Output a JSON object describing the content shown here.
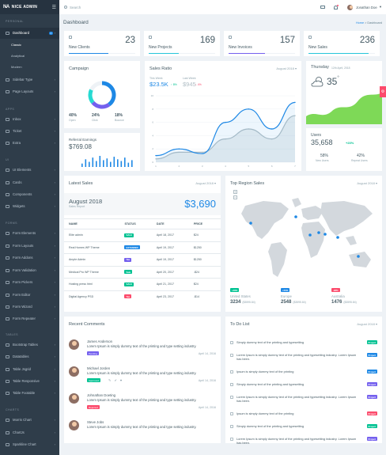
{
  "brand": {
    "name": "NICE ADMIN",
    "mark": "NA"
  },
  "sidebar": {
    "sections": [
      {
        "label": "PERSONAL",
        "top": 22
      },
      {
        "label": "APPS",
        "top": 133
      },
      {
        "label": "UI",
        "top": 197
      },
      {
        "label": "FORMS",
        "top": 277
      },
      {
        "label": "TABLES",
        "top": 418
      },
      {
        "label": "CHARTS",
        "top": 513
      }
    ],
    "items": [
      {
        "label": "Dashboard",
        "top": 39,
        "active": true,
        "badge": "4"
      },
      {
        "label": "Sidebar Type",
        "top": 98
      },
      {
        "label": "Page Layouts",
        "top": 113
      },
      {
        "label": "Inbox",
        "top": 148
      },
      {
        "label": "Ticket",
        "top": 163
      },
      {
        "label": "Extra",
        "top": 178
      },
      {
        "label": "UI Elements",
        "top": 212
      },
      {
        "label": "Cards",
        "top": 228
      },
      {
        "label": "Components",
        "top": 243
      },
      {
        "label": "Widgets",
        "top": 258
      },
      {
        "label": "Form Elements",
        "top": 292
      },
      {
        "label": "Form Layouts",
        "top": 308
      },
      {
        "label": "Form Addons",
        "top": 323
      },
      {
        "label": "Form Validation",
        "top": 339
      },
      {
        "label": "Form Pickers",
        "top": 354
      },
      {
        "label": "Form Editor",
        "top": 370
      },
      {
        "label": "Form Wizard",
        "top": 385
      },
      {
        "label": "Form Repeater",
        "top": 400
      },
      {
        "label": "Bootstrap Tables",
        "top": 433
      },
      {
        "label": "Datatables",
        "top": 448
      },
      {
        "label": "Table Jsgrid",
        "top": 464
      },
      {
        "label": "Table Responsive",
        "top": 479
      },
      {
        "label": "Table Footable",
        "top": 494
      },
      {
        "label": "Morris Chart",
        "top": 528
      },
      {
        "label": "ChartJs",
        "top": 544
      },
      {
        "label": "Sparkline Chart",
        "top": 559
      }
    ],
    "subitems": [
      {
        "label": "Classic",
        "top": 53
      },
      {
        "label": "Analytical",
        "top": 67
      },
      {
        "label": "Modern",
        "top": 81
      }
    ]
  },
  "topbar": {
    "search_placeholder": "Search",
    "user_name": "Jonathan Doe"
  },
  "page": {
    "title": "Dashboard",
    "breadcrumb_home": "Home",
    "breadcrumb_current": "Dashboard"
  },
  "stats": [
    {
      "label": "New Clients",
      "value": "23",
      "color": "#1e88e5",
      "fill": 0.6
    },
    {
      "label": "New Projects",
      "value": "169",
      "color": "#26c6da",
      "fill": 0.45
    },
    {
      "label": "New Invoices",
      "value": "157",
      "color": "#7460ee",
      "fill": 0.55
    },
    {
      "label": "New Sales",
      "value": "236",
      "color": "#26c6da",
      "fill": 0.9
    }
  ],
  "campaign": {
    "title": "Campaign",
    "items": [
      {
        "value": "40%",
        "label": "Open"
      },
      {
        "value": "24%",
        "label": "Click"
      },
      {
        "value": "18%",
        "label": "Bounce"
      }
    ],
    "donut": [
      {
        "value": 40,
        "color": "#1e88e5"
      },
      {
        "value": 24,
        "color": "#7460ee"
      },
      {
        "value": 18,
        "color": "#26dad2"
      },
      {
        "value": 18,
        "color": "#eef2f6"
      }
    ]
  },
  "referral": {
    "title": "Referral Earnings",
    "value": "$769.08",
    "bars": [
      4,
      9,
      6,
      11,
      7,
      13,
      8,
      10,
      6,
      12,
      9,
      7,
      11,
      5,
      8
    ]
  },
  "sales_ratio": {
    "title": "Sales Ratio",
    "period": "August 2018",
    "this_week_label": "This Week",
    "this_week_value": "$23.5K",
    "this_week_change": "↑ 8%",
    "last_week_label": "Last Week",
    "last_week_value": "$945",
    "last_week_change": "↓ 4%"
  },
  "chart_data": {
    "type": "area",
    "x": [
      1,
      2,
      3,
      4,
      5,
      6,
      7
    ],
    "series": [
      {
        "values": [
          1,
          2,
          1.3,
          6,
          8,
          5,
          9
        ],
        "color": "#1e88e5"
      },
      {
        "values": [
          0.5,
          1.5,
          1.5,
          3.5,
          5,
          3.5,
          7
        ],
        "color": "#b0bec5"
      }
    ],
    "ylim": [
      0,
      10
    ],
    "xticks": [
      "1",
      "2",
      "3",
      "4",
      "5",
      "6",
      "7"
    ],
    "yticks": [
      "0",
      "2",
      "4",
      "6",
      "8",
      "10"
    ]
  },
  "weather": {
    "day": "Thursday",
    "date": "12th April, 2018",
    "temp": "35",
    "deg": "°"
  },
  "users": {
    "title": "Users",
    "value": "35,658",
    "change": "+23%",
    "new_value": "58%",
    "new_label": "New Users",
    "repeat_value": "42%",
    "repeat_label": "Repeat Users"
  },
  "latest_sales": {
    "title": "Latest Sales",
    "period": "August 2018",
    "month": "August 2018",
    "report": "Sales Report",
    "amount": "$3,690",
    "columns": [
      "NAME",
      "STATUS",
      "DATE",
      "PRICE"
    ],
    "rows": [
      {
        "name": "Elite admin",
        "status": "SALE",
        "scolor": "#00c292",
        "date": "April 18, 2017",
        "price": "$24"
      },
      {
        "name": "Real Homes WP Theme",
        "status": "EXTENDED",
        "scolor": "#1e88e5",
        "date": "April 19, 2017",
        "price": "$1250"
      },
      {
        "name": "Ample Admin",
        "status": "Tax",
        "scolor": "#7460ee",
        "date": "April 19, 2017",
        "price": "$1250"
      },
      {
        "name": "Medical Pro WP Theme",
        "status": "Sale",
        "scolor": "#00c292",
        "date": "April 20, 2017",
        "price": "-$24"
      },
      {
        "name": "Hosting press html",
        "status": "SALE",
        "scolor": "#00c292",
        "date": "April 21, 2017",
        "price": "$24"
      },
      {
        "name": "Digital Agency PSD",
        "status": "Tax",
        "scolor": "#fc4b6c",
        "date": "April 23, 2017",
        "price": "-$14"
      }
    ]
  },
  "region": {
    "title": "Top Region Sales",
    "period": "August 2018",
    "regions": [
      {
        "badge": "+28%",
        "bcolor": "#00c292",
        "name": "United States",
        "value": "3234",
        "sub": "($3595.84)"
      },
      {
        "badge": "+50%",
        "bcolor": "#1e88e5",
        "name": "Europe",
        "value": "2548",
        "sub": "($3595.84)"
      },
      {
        "badge": "-28%",
        "bcolor": "#fc4b6c",
        "name": "Australia",
        "value": "1476",
        "sub": "($3595.84)"
      }
    ]
  },
  "comments": {
    "title": "Recent Comments",
    "items": [
      {
        "name": "James Anderson",
        "text": "Lorem Ipsum is simply dummy text of the printing and type setting industry.",
        "status": "Pending",
        "scolor": "#7460ee",
        "date": "April 14, 2016"
      },
      {
        "name": "Michael Jorden",
        "text": "Lorem Ipsum is simply dummy text of the printing and type setting industry.",
        "status": "Approved",
        "scolor": "#00c292",
        "date": "April 14, 2016"
      },
      {
        "name": "Johnathan Doeting",
        "text": "Lorem Ipsum is simply dummy text of the printing and type setting industry.",
        "status": "Rejected",
        "scolor": "#fc4b6c",
        "date": "April 14, 2016"
      },
      {
        "name": "Steve Jobs",
        "text": "Lorem Ipsum is simply dummy text of the printing and type setting industry.",
        "status": "",
        "scolor": "",
        "date": ""
      }
    ]
  },
  "todo": {
    "title": "To Do List",
    "period": "August 2018",
    "items": [
      {
        "text": "Simply dummy text of the printing and typesetting",
        "tag": "Project",
        "tcolor": "#00c292",
        "top": 21
      },
      {
        "text": "Lorem Ipsum is simply dummy text of the printing and typesetting industry. Lorem Ipsum has been.",
        "tag": "Project",
        "tcolor": "#1e88e5",
        "top": 37
      },
      {
        "text": "Ipsum is simply dummy text of the printing",
        "tag": "Project",
        "tcolor": "#1e88e5",
        "top": 58
      },
      {
        "text": "Simply dummy text of the printing and typesetting",
        "tag": "Project",
        "tcolor": "#7460ee",
        "top": 74
      },
      {
        "text": "Lorem Ipsum is simply dummy text of the printing and typesetting industry. Lorem Ipsum has been.",
        "tag": "Project",
        "tcolor": "#7460ee",
        "top": 90
      },
      {
        "text": "Ipsum is simply dummy text of the printing",
        "tag": "Project",
        "tcolor": "#fc4b6c",
        "top": 111
      },
      {
        "text": "Simply dummy text of the printing and typesetting",
        "tag": "Project",
        "tcolor": "#00c292",
        "top": 127
      },
      {
        "text": "Lorem Ipsum is simply dummy text of the printing and typesetting industry. Lorem Ipsum has been.",
        "tag": "Project",
        "tcolor": "#7460ee",
        "top": 143
      }
    ]
  }
}
